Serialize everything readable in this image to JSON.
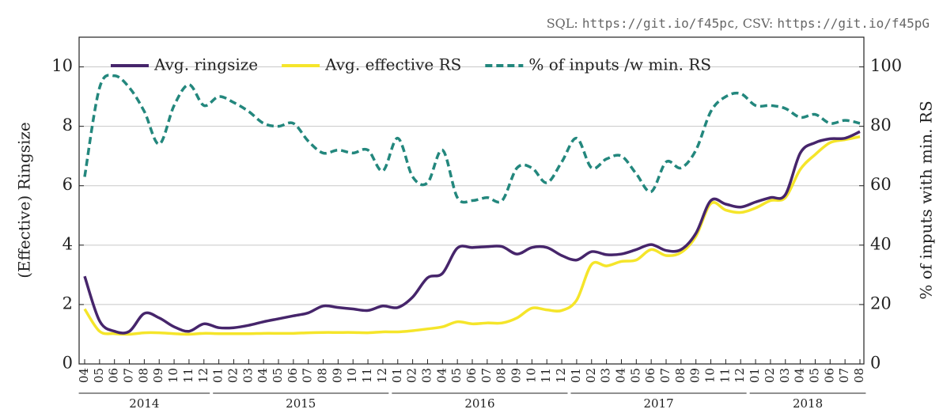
{
  "chart_data": {
    "type": "line",
    "annotation": [
      "SQL: ",
      "https://git.io/f45pc",
      ", CSV: ",
      "https://git.io/f45pG"
    ],
    "y_label": "(Effective) Ringsize",
    "y2_label": "% of inputs with min. RS",
    "categories": [
      "04",
      "05",
      "06",
      "07",
      "08",
      "09",
      "10",
      "11",
      "12",
      "01",
      "02",
      "03",
      "04",
      "05",
      "06",
      "07",
      "08",
      "09",
      "10",
      "11",
      "12",
      "01",
      "02",
      "03",
      "04",
      "05",
      "06",
      "07",
      "08",
      "09",
      "10",
      "11",
      "12",
      "01",
      "02",
      "03",
      "04",
      "05",
      "06",
      "07",
      "08",
      "09",
      "10",
      "11",
      "12",
      "01",
      "02",
      "03",
      "04",
      "05",
      "06",
      "07",
      "08"
    ],
    "years": [
      "2014",
      "2015",
      "2016",
      "2017",
      "2018"
    ],
    "ylim": [
      0,
      11
    ],
    "yticks": [
      0,
      2,
      4,
      6,
      8,
      10
    ],
    "y2lim": [
      0,
      110
    ],
    "y2ticks": [
      0,
      20,
      40,
      60,
      80,
      100
    ],
    "grid": true,
    "series": [
      {
        "name": "Avg. ringsize",
        "color": "#46256b",
        "values": [
          2.95,
          1.45,
          1.1,
          1.1,
          1.7,
          1.55,
          1.25,
          1.1,
          1.35,
          1.22,
          1.22,
          1.3,
          1.42,
          1.52,
          1.62,
          1.72,
          1.95,
          1.9,
          1.85,
          1.8,
          1.95,
          1.9,
          2.25,
          2.9,
          3.05,
          3.9,
          3.92,
          3.95,
          3.95,
          3.7,
          3.92,
          3.92,
          3.65,
          3.5,
          3.78,
          3.68,
          3.7,
          3.85,
          4.02,
          3.82,
          3.85,
          4.4,
          5.5,
          5.38,
          5.28,
          5.45,
          5.6,
          5.7,
          7.1,
          7.45,
          7.58,
          7.6,
          7.82
        ]
      },
      {
        "name": "Avg. effective RS",
        "color": "#f5e52a",
        "values": [
          1.85,
          1.1,
          1.02,
          1.0,
          1.05,
          1.05,
          1.02,
          1.0,
          1.03,
          1.02,
          1.02,
          1.02,
          1.03,
          1.03,
          1.03,
          1.05,
          1.06,
          1.06,
          1.06,
          1.05,
          1.08,
          1.08,
          1.12,
          1.18,
          1.25,
          1.42,
          1.35,
          1.38,
          1.38,
          1.55,
          1.88,
          1.82,
          1.8,
          2.15,
          3.35,
          3.3,
          3.45,
          3.5,
          3.85,
          3.65,
          3.75,
          4.3,
          5.4,
          5.18,
          5.1,
          5.25,
          5.5,
          5.6,
          6.55,
          7.05,
          7.45,
          7.55,
          7.65
        ]
      },
      {
        "name": "% of inputs /w min. RS",
        "color": "#23877d",
        "dashed": true,
        "axis": "y2",
        "values": [
          63,
          93,
          97,
          93,
          85,
          74,
          87,
          94,
          87,
          90,
          88,
          85,
          81,
          80,
          81,
          75,
          71,
          72,
          71,
          72,
          65,
          76,
          63,
          61,
          72,
          56,
          55,
          56,
          55,
          66,
          66,
          61,
          68,
          76,
          66,
          69,
          70,
          64,
          58,
          68,
          66,
          72,
          85,
          90,
          91,
          87,
          87,
          86,
          83,
          84,
          81,
          82,
          81
        ]
      }
    ]
  }
}
